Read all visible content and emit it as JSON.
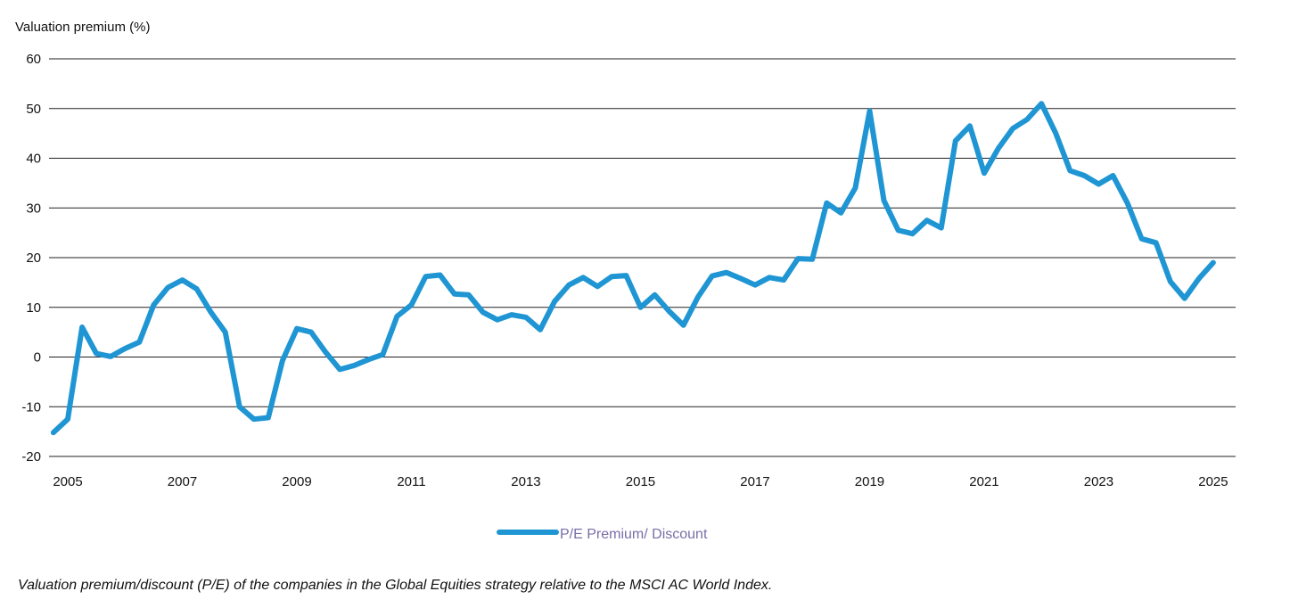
{
  "chart_data": {
    "type": "line",
    "ylabel": "Valuation premium (%)",
    "xlabel": "",
    "ylim": [
      -20,
      60
    ],
    "yticks": [
      60,
      50,
      40,
      30,
      20,
      10,
      0,
      -10,
      -20
    ],
    "xticks": [
      "2005",
      "2007",
      "2009",
      "2011",
      "2013",
      "2015",
      "2017",
      "2019",
      "2021",
      "2023",
      "2025"
    ],
    "xlim": [
      2005.0,
      2025.25
    ],
    "grid": true,
    "legend_position": "bottom-center",
    "series": [
      {
        "name": "P/E Premium/ Discount",
        "color": "#1f96d3",
        "x": [
          2004.75,
          2005.0,
          2005.25,
          2005.5,
          2005.75,
          2006.0,
          2006.25,
          2006.5,
          2006.75,
          2007.0,
          2007.25,
          2007.5,
          2007.75,
          2008.0,
          2008.25,
          2008.5,
          2008.75,
          2009.0,
          2009.25,
          2009.5,
          2009.75,
          2010.0,
          2010.25,
          2010.5,
          2010.75,
          2011.0,
          2011.25,
          2011.5,
          2011.75,
          2012.0,
          2012.25,
          2012.5,
          2012.75,
          2013.0,
          2013.25,
          2013.5,
          2013.75,
          2014.0,
          2014.25,
          2014.5,
          2014.75,
          2015.0,
          2015.25,
          2015.5,
          2015.75,
          2016.0,
          2016.25,
          2016.5,
          2016.75,
          2017.0,
          2017.25,
          2017.5,
          2017.75,
          2018.0,
          2018.25,
          2018.5,
          2018.75,
          2019.0,
          2019.25,
          2019.5,
          2019.75,
          2020.0,
          2020.25,
          2020.5,
          2020.75,
          2021.0,
          2021.25,
          2021.5,
          2021.75,
          2022.0,
          2022.25,
          2022.5,
          2022.75,
          2023.0,
          2023.25,
          2023.5,
          2023.75,
          2024.0,
          2024.25,
          2024.5,
          2024.75,
          2025.0
        ],
        "values": [
          -15.2,
          -12.5,
          6.0,
          0.7,
          0.1,
          1.7,
          3.0,
          10.5,
          14.0,
          15.5,
          13.7,
          9.0,
          5.0,
          -10.0,
          -12.5,
          -12.2,
          -0.7,
          5.7,
          5.0,
          1.0,
          -2.5,
          -1.7,
          -0.5,
          0.5,
          8.2,
          10.5,
          16.2,
          16.5,
          12.7,
          12.5,
          9.0,
          7.5,
          8.5,
          8.0,
          5.5,
          11.2,
          14.5,
          16.0,
          14.2,
          16.2,
          16.4,
          10.0,
          12.5,
          9.2,
          6.4,
          12.0,
          16.3,
          17.0,
          15.8,
          14.5,
          16.0,
          15.5,
          19.8,
          19.7,
          31.0,
          29.0,
          34.0,
          49.5,
          31.5,
          25.5,
          24.8,
          27.5,
          26.0,
          43.5,
          46.5,
          37.0,
          42.0,
          46.0,
          47.8,
          51.0,
          45.0,
          37.5,
          36.5,
          34.8,
          36.5,
          31.0,
          23.8,
          23.0,
          15.2,
          11.8,
          15.8,
          19.0
        ]
      }
    ]
  },
  "caption": "Valuation premium/discount (P/E) of the companies in the Global Equities strategy relative to the MSCI AC World Index."
}
